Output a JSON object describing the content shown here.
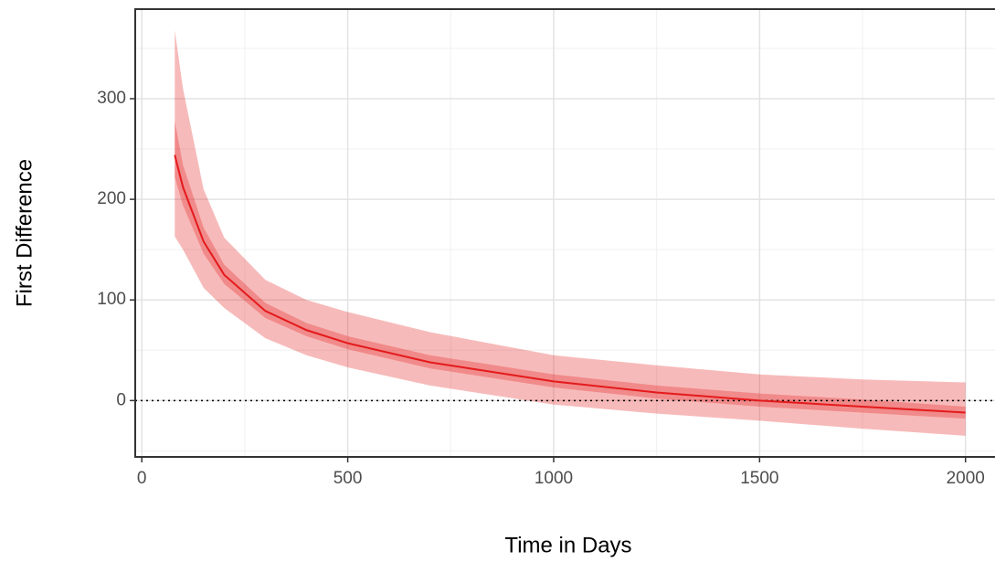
{
  "chart_data": {
    "type": "line",
    "x_label": "Time in Days",
    "y_label": "First Difference",
    "x": [
      80,
      100,
      150,
      200,
      300,
      400,
      500,
      700,
      1000,
      1250,
      1500,
      1750,
      2000
    ],
    "line": {
      "color": "#e41a1c",
      "values": [
        244,
        212,
        158,
        125,
        89,
        70,
        57,
        38,
        19,
        8,
        0,
        -6,
        -12
      ]
    },
    "bands": [
      {
        "color": "#e41a1c",
        "opacity": 0.3,
        "lower": [
          163,
          150,
          112,
          92,
          62,
          45,
          33,
          15,
          -4,
          -13,
          -20,
          -28,
          -35
        ],
        "upper": [
          368,
          310,
          210,
          162,
          120,
          100,
          88,
          68,
          45,
          35,
          26,
          21,
          18
        ]
      },
      {
        "color": "#e41a1c",
        "opacity": 0.3,
        "lower": [
          222,
          194,
          146,
          116,
          82,
          64,
          51,
          32,
          13,
          2,
          -6,
          -12,
          -18
        ],
        "upper": [
          278,
          234,
          172,
          135,
          97,
          77,
          64,
          45,
          26,
          15,
          7,
          1,
          -6
        ]
      }
    ],
    "hline": 0,
    "xlim": [
      -16,
      2096
    ],
    "ylim": [
      -56,
      389
    ],
    "xticks": [
      0,
      500,
      1000,
      1500,
      2000
    ],
    "yticks": [
      0,
      100,
      200,
      300
    ],
    "x_minor_breaks": [
      250,
      750,
      1250,
      1750
    ],
    "y_minor_breaks": [
      -50,
      50,
      150,
      250,
      350
    ],
    "grid": true
  }
}
